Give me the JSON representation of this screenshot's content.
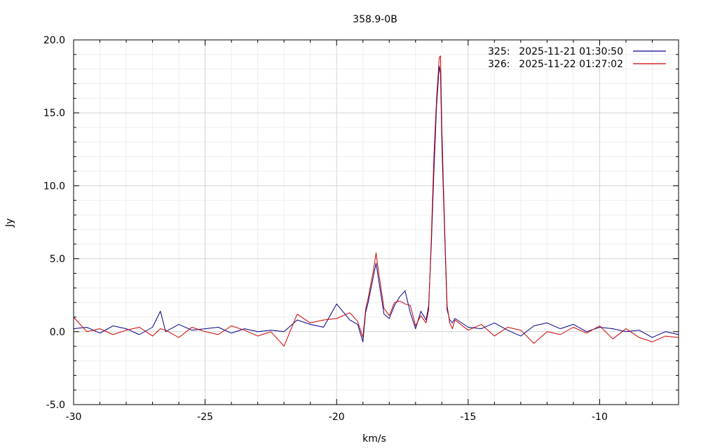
{
  "chart_data": {
    "type": "line",
    "title": "358.9-0B",
    "xlabel": "km/s",
    "ylabel": "Jy",
    "xlim": [
      -30,
      -7
    ],
    "ylim": [
      -5,
      20
    ],
    "x_ticks": [
      -30,
      -25,
      -20,
      -15,
      -10
    ],
    "y_ticks": [
      -5,
      0,
      5,
      10,
      15,
      20
    ],
    "x_tick_labels": [
      "-30",
      "-25",
      "-20",
      "-15",
      "-10"
    ],
    "y_tick_labels": [
      "-5.0",
      "0.0",
      "5.0",
      "10.0",
      "15.0",
      "20.0"
    ],
    "grid": true,
    "legend_position": "top-right",
    "series": [
      {
        "id": "325:",
        "name": "2025-11-21 01:30:50",
        "color": "#00008b",
        "x": [
          -30.0,
          -29.5,
          -29.0,
          -28.5,
          -28.0,
          -27.5,
          -27.0,
          -26.7,
          -26.5,
          -26.0,
          -25.5,
          -25.0,
          -24.5,
          -24.0,
          -23.5,
          -23.0,
          -22.5,
          -22.0,
          -21.5,
          -21.0,
          -20.5,
          -20.0,
          -19.5,
          -19.2,
          -19.0,
          -18.9,
          -18.8,
          -18.6,
          -18.5,
          -18.4,
          -18.2,
          -18.0,
          -17.8,
          -17.6,
          -17.4,
          -17.2,
          -17.0,
          -16.8,
          -16.6,
          -16.5,
          -16.4,
          -16.3,
          -16.2,
          -16.1,
          -16.05,
          -16.0,
          -15.9,
          -15.8,
          -15.7,
          -15.6,
          -15.5,
          -15.0,
          -14.5,
          -14.0,
          -13.5,
          -13.0,
          -12.5,
          -12.0,
          -11.5,
          -11.0,
          -10.5,
          -10.0,
          -9.5,
          -9.0,
          -8.5,
          -8.0,
          -7.5,
          -7.0
        ],
        "values": [
          0.2,
          0.3,
          -0.1,
          0.4,
          0.2,
          -0.2,
          0.3,
          1.4,
          0.0,
          0.5,
          0.1,
          0.2,
          0.3,
          -0.1,
          0.2,
          0.0,
          0.1,
          0.0,
          0.8,
          0.5,
          0.3,
          1.9,
          0.8,
          0.5,
          -0.7,
          1.3,
          2.0,
          3.8,
          4.7,
          3.5,
          1.2,
          0.9,
          1.8,
          2.4,
          2.8,
          1.3,
          0.2,
          1.4,
          0.8,
          1.8,
          6.0,
          11.0,
          15.5,
          18.2,
          17.7,
          13.0,
          7.0,
          1.5,
          0.8,
          0.6,
          0.9,
          0.3,
          0.2,
          0.6,
          0.1,
          -0.3,
          0.4,
          0.6,
          0.2,
          0.5,
          0.0,
          0.3,
          0.2,
          0.0,
          0.1,
          -0.4,
          0.0,
          -0.2
        ]
      },
      {
        "id": "326:",
        "name": "2025-11-22 01:27:02",
        "color": "#cc0000",
        "x": [
          -30.0,
          -29.5,
          -29.0,
          -28.5,
          -28.0,
          -27.5,
          -27.0,
          -26.7,
          -26.5,
          -26.0,
          -25.5,
          -25.0,
          -24.5,
          -24.0,
          -23.5,
          -23.0,
          -22.5,
          -22.0,
          -21.5,
          -21.0,
          -20.5,
          -20.0,
          -19.5,
          -19.2,
          -19.0,
          -18.9,
          -18.8,
          -18.6,
          -18.5,
          -18.4,
          -18.2,
          -18.0,
          -17.8,
          -17.6,
          -17.4,
          -17.2,
          -17.0,
          -16.8,
          -16.6,
          -16.5,
          -16.4,
          -16.3,
          -16.2,
          -16.1,
          -16.05,
          -16.0,
          -15.9,
          -15.8,
          -15.7,
          -15.6,
          -15.5,
          -15.0,
          -14.5,
          -14.0,
          -13.5,
          -13.0,
          -12.5,
          -12.0,
          -11.5,
          -11.0,
          -10.5,
          -10.0,
          -9.5,
          -9.0,
          -8.5,
          -8.0,
          -7.5,
          -7.0
        ],
        "values": [
          1.0,
          0.0,
          0.2,
          -0.2,
          0.1,
          0.3,
          -0.3,
          0.2,
          0.1,
          -0.4,
          0.3,
          0.0,
          -0.2,
          0.4,
          0.1,
          -0.3,
          0.0,
          -1.0,
          1.2,
          0.6,
          0.8,
          0.9,
          1.3,
          0.7,
          -0.4,
          1.5,
          2.3,
          4.2,
          5.4,
          4.0,
          1.6,
          1.1,
          2.0,
          2.1,
          1.9,
          1.8,
          0.4,
          1.1,
          0.6,
          1.5,
          6.5,
          12.0,
          16.0,
          18.8,
          18.9,
          14.0,
          7.5,
          1.8,
          0.6,
          0.2,
          0.8,
          0.1,
          0.5,
          -0.3,
          0.3,
          0.1,
          -0.8,
          0.0,
          -0.2,
          0.3,
          -0.1,
          0.4,
          -0.5,
          0.2,
          -0.4,
          -0.7,
          -0.3,
          -0.4
        ]
      }
    ]
  }
}
